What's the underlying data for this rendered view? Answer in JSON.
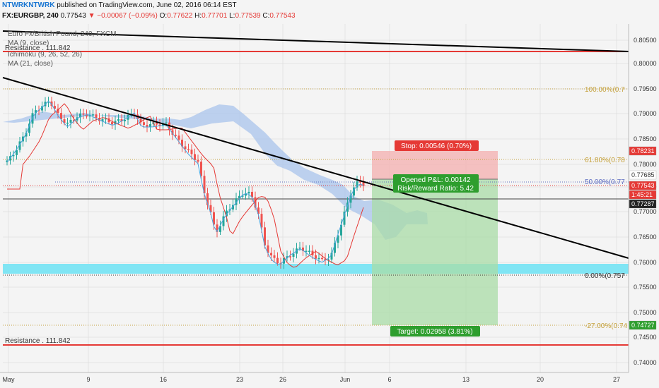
{
  "header": {
    "author": "NTWRKNTWRK",
    "published_text": "published on TradingView.com, June 02, 2016 06:14 EST",
    "symbol": "FX:EURGBP, 240",
    "last": "0.77543",
    "change": "−0.00067 (−0.09%)",
    "open_label": "O:",
    "open": "0.77622",
    "high_label": "H:",
    "high": "0.77701",
    "low_label": "L:",
    "low": "0.77539",
    "close_label": "C:",
    "close": "0.77543"
  },
  "legend": {
    "series_title": "Euro Fx/British Pound, 240, FXCM",
    "ma9": "MA (9, close)",
    "ichimoku": "Ichimoku (9, 26, 52, 26)",
    "ma21": "MA (21, close)"
  },
  "colors": {
    "up": "#26a69a",
    "down": "#ef5350",
    "ma9": "#4aa3df",
    "ma21": "#e53935",
    "cloud": "#a9c4ec",
    "support_zone": "#80e5f4",
    "resistance": "#e53935",
    "fib": "#c5a13c",
    "profit": "#a9dca7",
    "stop": "#f3b6b6"
  },
  "resistance": {
    "top_label": "Resistance . 111.842",
    "bottom_label": "Resistance . 111.842"
  },
  "fib": {
    "level_100": "100.00%(0.7",
    "level_618": "61.80%(0.78",
    "level_50": "50.00%(0.77",
    "level_0": "0.00%(0.757",
    "level_m27": "-27.00%(0.74"
  },
  "position": {
    "stop": "Stop: 0.00546 (0.70%)",
    "pnl": "Opened P&L: 0.00142",
    "ratio": "Risk/Reward Ratio: 5.42",
    "target": "Target: 0.02958 (3.81%)"
  },
  "price_axis": {
    "ticks": [
      "0.80500",
      "0.80000",
      "0.79500",
      "0.79000",
      "0.78500",
      "0.78000",
      "0.77500",
      "0.77000",
      "0.76500",
      "0.76000",
      "0.75500",
      "0.75000",
      "0.74500",
      "0.74000"
    ],
    "badges": [
      {
        "text": "0.78231",
        "color": "#e53935",
        "fg": "#ffffff"
      },
      {
        "text": "0.77685",
        "color": "#ffffff",
        "fg": "#333333"
      },
      {
        "text": "0.77543",
        "color": "#e53935",
        "fg": "#ffffff"
      },
      {
        "text": "1:45:21",
        "color": "#e53935",
        "fg": "#ffffff"
      },
      {
        "text": "0.77287",
        "color": "#222222",
        "fg": "#ffffff"
      },
      {
        "text": "0.74727",
        "color": "#2e9e2e",
        "fg": "#ffffff"
      }
    ]
  },
  "time_axis": {
    "ticks": [
      "May",
      "9",
      "16",
      "23",
      "26",
      "Jun",
      "6",
      "13",
      "20",
      "27"
    ]
  }
}
